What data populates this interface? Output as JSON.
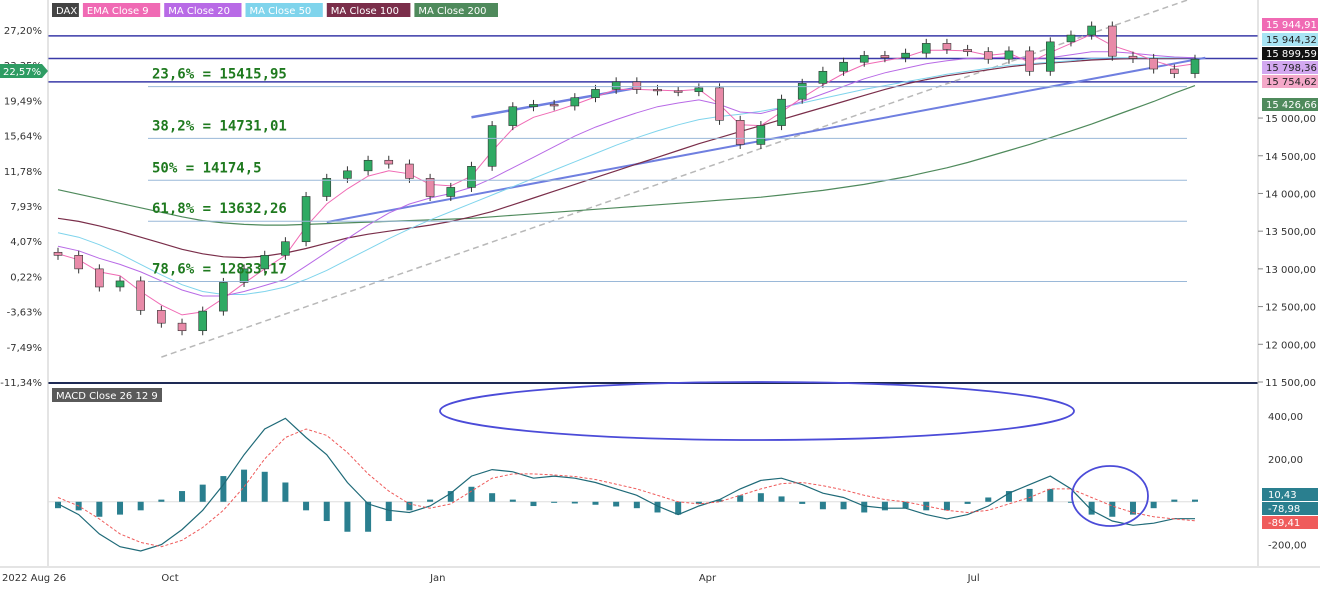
{
  "legend": [
    {
      "label": "DAX",
      "color": "#444444"
    },
    {
      "label": "EMA Close 9",
      "color": "#f06ab4"
    },
    {
      "label": "MA Close 20",
      "color": "#b86ae6"
    },
    {
      "label": "MA Close 50",
      "color": "#7fd4ec"
    },
    {
      "label": "MA Close 100",
      "color": "#7a2e4a"
    },
    {
      "label": "MA Close 200",
      "color": "#4f8a5c"
    }
  ],
  "macd_label": "MACD Close 26 12 9",
  "fib_levels": [
    {
      "text": "23,6% = 15415,95",
      "value": 15415.95
    },
    {
      "text": "38,2% = 14731,01",
      "value": 14731.01
    },
    {
      "text": "50% = 14174,5",
      "value": 14174.5
    },
    {
      "text": "61,8% = 13632,26",
      "value": 13632.26
    },
    {
      "text": "78,6% = 12833,17",
      "value": 12833.17
    }
  ],
  "price_badges": [
    {
      "text": "15 944,91",
      "value": 15944.91,
      "bg": "#f06ab4",
      "fg": "#ffffff"
    },
    {
      "text": "15 944,32",
      "value": 15944.32,
      "bg": "#a8e4f4",
      "fg": "#222222"
    },
    {
      "text": "15 899,59",
      "value": 15899.59,
      "bg": "#111111",
      "fg": "#ffffff"
    },
    {
      "text": "15 798,36",
      "value": 15798.36,
      "bg": "#d2a8f0",
      "fg": "#222222"
    },
    {
      "text": "15 754,62",
      "value": 15754.62,
      "bg": "#f4a8c8",
      "fg": "#222222"
    },
    {
      "text": "15 426,66",
      "value": 15426.66,
      "bg": "#4f8a5c",
      "fg": "#ffffff"
    }
  ],
  "left_badge": {
    "text": "22,57%",
    "value": 22.57,
    "bg": "#2e9c63",
    "fg": "#ffffff"
  },
  "macd_badges": [
    {
      "text": "10,43",
      "value": 10.43,
      "bg": "#2a7f8f",
      "fg": "#ffffff"
    },
    {
      "text": "-78,98",
      "value": -78.98,
      "bg": "#2a7f8f",
      "fg": "#ffffff"
    },
    {
      "text": "-89,41",
      "value": -89.41,
      "bg": "#ef5b5b",
      "fg": "#ffffff"
    }
  ],
  "chart_data": [
    {
      "type": "candlestick",
      "title": "DAX",
      "y_price_ticks": [
        "15 000,00",
        "14 500,00",
        "14 000,00",
        "13 500,00",
        "13 000,00",
        "12 500,00",
        "12 000,00",
        "11 500,00"
      ],
      "y_price_tick_values": [
        15000,
        14500,
        14000,
        13500,
        13000,
        12500,
        12000,
        11500
      ],
      "y_pct_ticks": [
        "27,20%",
        "23,35%",
        "19,49%",
        "15,64%",
        "11,78%",
        "7,93%",
        "4,07%",
        "0,22%",
        "-3,63%",
        "-7,49%",
        "-11,34%"
      ],
      "y_pct_tick_values": [
        27.2,
        23.35,
        19.49,
        15.64,
        11.78,
        7.93,
        4.07,
        0.22,
        -3.63,
        -7.49,
        -11.34
      ],
      "ylim": [
        11500,
        16300
      ],
      "x_ticks": [
        "2022 Aug 26",
        "Oct",
        "Jan",
        "Apr",
        "Jul"
      ],
      "x_tick_weeks": [
        0,
        5,
        18,
        31,
        44
      ],
      "horizontal_levels": [
        16090,
        15790,
        15480
      ],
      "series_close_weekly": [
        13180,
        13000,
        12760,
        12840,
        12450,
        12280,
        12180,
        12440,
        12820,
        13000,
        13180,
        13360,
        13960,
        14200,
        14300,
        14440,
        14390,
        14200,
        13960,
        14080,
        14360,
        14900,
        15150,
        15180,
        15160,
        15270,
        15380,
        15480,
        15380,
        15360,
        15350,
        15400,
        14970,
        14650,
        14900,
        15250,
        15460,
        15620,
        15740,
        15830,
        15800,
        15860,
        15990,
        15910,
        15880,
        15780,
        15890,
        15620,
        16010,
        16100,
        16220,
        15820,
        15790,
        15650,
        15590,
        15780
      ],
      "ema9_weekly": [
        13200,
        13120,
        12960,
        12910,
        12700,
        12520,
        12390,
        12430,
        12610,
        12810,
        13000,
        13180,
        13560,
        13860,
        14060,
        14230,
        14300,
        14260,
        14120,
        14100,
        14230,
        14560,
        14860,
        15010,
        15090,
        15180,
        15280,
        15380,
        15380,
        15370,
        15360,
        15380,
        15180,
        14910,
        14900,
        15080,
        15270,
        15440,
        15590,
        15710,
        15760,
        15810,
        15900,
        15900,
        15890,
        15830,
        15860,
        15740,
        15870,
        15990,
        16110,
        15960,
        15870,
        15760,
        15680,
        15720
      ],
      "ma20_weekly": [
        13300,
        13240,
        13140,
        13060,
        12960,
        12840,
        12720,
        12640,
        12640,
        12700,
        12780,
        12860,
        13040,
        13220,
        13400,
        13580,
        13740,
        13860,
        13940,
        14000,
        14080,
        14200,
        14340,
        14480,
        14620,
        14760,
        14880,
        14980,
        15070,
        15150,
        15200,
        15240,
        15180,
        15080,
        15060,
        15130,
        15220,
        15320,
        15420,
        15520,
        15600,
        15660,
        15720,
        15760,
        15790,
        15800,
        15810,
        15790,
        15800,
        15840,
        15880,
        15880,
        15860,
        15830,
        15810,
        15800
      ],
      "ma50_weekly": [
        13480,
        13420,
        13320,
        13200,
        13060,
        12920,
        12790,
        12700,
        12660,
        12660,
        12700,
        12760,
        12860,
        12980,
        13120,
        13260,
        13400,
        13530,
        13650,
        13760,
        13870,
        13980,
        14090,
        14200,
        14310,
        14420,
        14530,
        14640,
        14740,
        14830,
        14910,
        14980,
        15020,
        15050,
        15090,
        15140,
        15200,
        15260,
        15320,
        15380,
        15430,
        15480,
        15530,
        15580,
        15620,
        15660,
        15700,
        15720,
        15740,
        15760,
        15790,
        15800,
        15800,
        15800,
        15800,
        15800
      ],
      "ma100_weekly": [
        13670,
        13630,
        13570,
        13500,
        13420,
        13340,
        13260,
        13200,
        13160,
        13150,
        13170,
        13210,
        13270,
        13340,
        13410,
        13460,
        13500,
        13540,
        13580,
        13630,
        13690,
        13760,
        13850,
        13940,
        14030,
        14120,
        14210,
        14300,
        14390,
        14480,
        14570,
        14660,
        14740,
        14820,
        14900,
        14980,
        15060,
        15140,
        15220,
        15300,
        15380,
        15450,
        15510,
        15560,
        15600,
        15640,
        15680,
        15710,
        15730,
        15750,
        15770,
        15780,
        15790,
        15790,
        15790,
        15800
      ],
      "ma200_weekly": [
        14050,
        13990,
        13930,
        13870,
        13810,
        13750,
        13690,
        13640,
        13610,
        13590,
        13580,
        13580,
        13590,
        13600,
        13610,
        13620,
        13630,
        13640,
        13650,
        13660,
        13670,
        13690,
        13710,
        13730,
        13750,
        13770,
        13790,
        13810,
        13830,
        13850,
        13870,
        13890,
        13910,
        13930,
        13950,
        13980,
        14010,
        14040,
        14080,
        14120,
        14170,
        14220,
        14280,
        14340,
        14410,
        14490,
        14570,
        14650,
        14740,
        14830,
        14920,
        15020,
        15120,
        15220,
        15330,
        15430
      ]
    },
    {
      "type": "macd",
      "title": "MACD Close 26 12 9",
      "y_ticks": [
        "400,00",
        "200,00",
        "-200,00"
      ],
      "y_tick_values": [
        400,
        200,
        -200
      ],
      "ylim": [
        -300,
        550
      ],
      "macd_weekly": [
        -10,
        -60,
        -150,
        -210,
        -230,
        -200,
        -130,
        -40,
        80,
        220,
        340,
        390,
        300,
        220,
        90,
        -10,
        -40,
        -50,
        -20,
        40,
        120,
        150,
        140,
        110,
        120,
        110,
        90,
        60,
        30,
        -20,
        -60,
        -20,
        10,
        60,
        100,
        110,
        80,
        40,
        20,
        -20,
        -30,
        -30,
        -60,
        -80,
        -60,
        -20,
        40,
        80,
        120,
        60,
        -40,
        -90,
        -110,
        -100,
        -79,
        -79
      ],
      "signal_weekly": [
        20,
        -20,
        -80,
        -150,
        -190,
        -210,
        -180,
        -120,
        -40,
        70,
        200,
        300,
        340,
        310,
        230,
        130,
        50,
        -10,
        -30,
        -10,
        50,
        110,
        130,
        130,
        125,
        118,
        104,
        82,
        60,
        30,
        0,
        -10,
        0,
        30,
        60,
        85,
        90,
        75,
        55,
        30,
        10,
        0,
        -20,
        -40,
        -50,
        -40,
        -10,
        20,
        60,
        60,
        20,
        -20,
        -50,
        -70,
        -80,
        -89
      ],
      "histogram_weekly": [
        -30,
        -40,
        -70,
        -60,
        -40,
        10,
        50,
        80,
        120,
        150,
        140,
        90,
        -40,
        -90,
        -140,
        -140,
        -90,
        -40,
        10,
        50,
        70,
        40,
        10,
        -20,
        -5,
        -8,
        -14,
        -22,
        -30,
        -50,
        -60,
        -10,
        10,
        30,
        40,
        25,
        -10,
        -35,
        -35,
        -50,
        -40,
        -30,
        -40,
        -40,
        -10,
        20,
        50,
        60,
        60,
        0,
        -60,
        -70,
        -60,
        -30,
        10,
        10
      ]
    }
  ]
}
